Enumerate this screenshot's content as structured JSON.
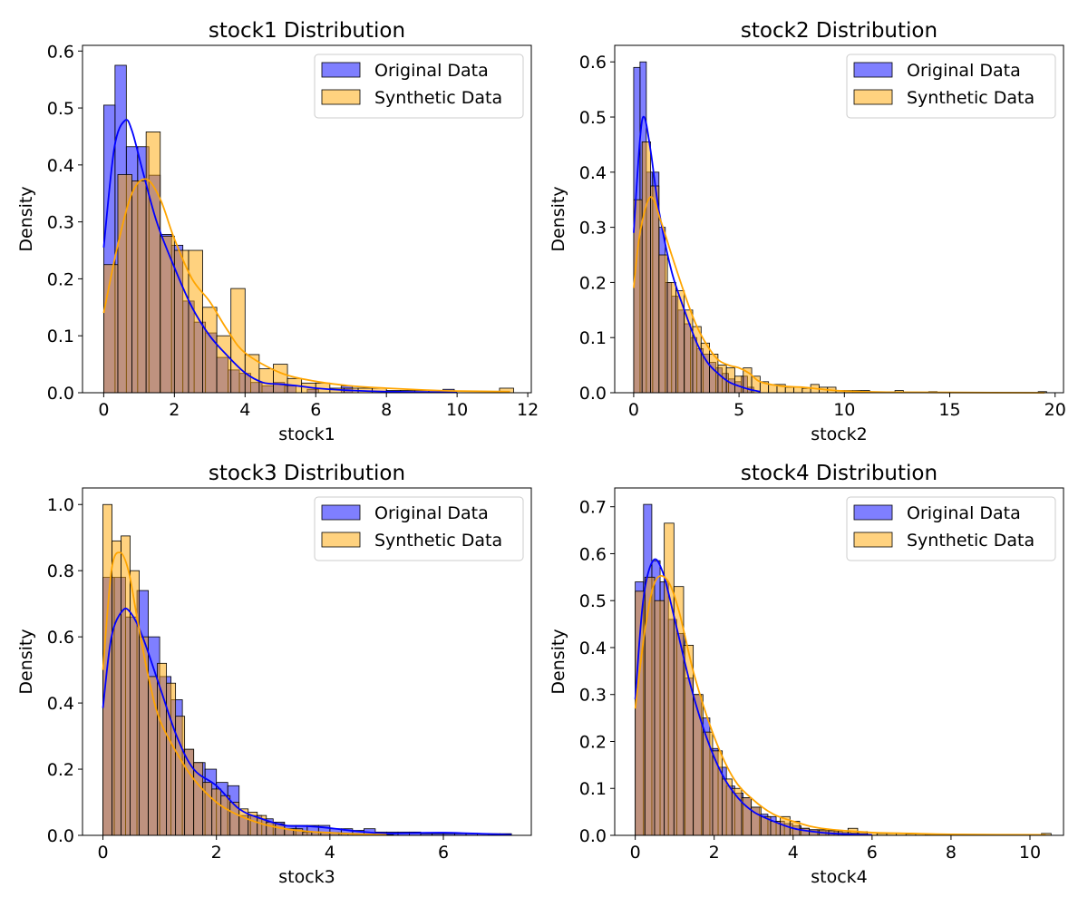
{
  "figure": {
    "colors": {
      "original": "#0000ff",
      "synthetic": "#ffa500",
      "overlap": "#a77d78"
    }
  },
  "chart_data": [
    {
      "type": "histogram",
      "title": "stock1 Distribution",
      "xlabel": "stock1",
      "ylabel": "Density",
      "xlim": [
        -0.6,
        12.1
      ],
      "ylim": [
        0,
        0.61
      ],
      "xticks": [
        0,
        2,
        4,
        6,
        8,
        10,
        12
      ],
      "yticks": [
        0.0,
        0.1,
        0.2,
        0.3,
        0.4,
        0.5,
        0.6
      ],
      "legend": {
        "position": "top-right",
        "entries": [
          "Original Data",
          "Synthetic Data"
        ]
      },
      "series": [
        {
          "name": "Original Data",
          "bin_start": 0.0,
          "bin_width": 0.32,
          "values": [
            0.505,
            0.575,
            0.432,
            0.432,
            0.382,
            0.278,
            0.259,
            0.161,
            0.124,
            0.105,
            0.062,
            0.04,
            0.034,
            0.018,
            0.012,
            0.018,
            0.012,
            0.0,
            0.006,
            0.0,
            0.0,
            0.012,
            0.0,
            0.0,
            0.0,
            0.0,
            0.0,
            0.0,
            0.0,
            0.0,
            0.006
          ]
        },
        {
          "name": "Synthetic Data",
          "bin_start": 0.0,
          "bin_width": 0.4,
          "values": [
            0.225,
            0.383,
            0.372,
            0.458,
            0.275,
            0.25,
            0.25,
            0.15,
            0.1,
            0.183,
            0.067,
            0.042,
            0.05,
            0.025,
            0.017,
            0.017,
            0.008,
            0.008,
            0.008,
            0.008,
            0.004,
            0.004,
            0.004,
            0.004,
            0.0,
            0.0,
            0.0,
            0.0,
            0.008
          ]
        },
        {
          "name": "Original Data",
          "kind": "kde",
          "x": [
            0,
            0.3,
            0.6,
            0.8,
            1.1,
            1.5,
            2.0,
            2.5,
            3.0,
            3.5,
            4.0,
            4.5,
            5.0,
            5.5,
            6.0,
            7.0,
            8.0,
            10.0
          ],
          "y": [
            0.255,
            0.43,
            0.478,
            0.46,
            0.39,
            0.3,
            0.22,
            0.15,
            0.1,
            0.065,
            0.035,
            0.018,
            0.015,
            0.012,
            0.008,
            0.004,
            0.002,
            0.001
          ]
        },
        {
          "name": "Synthetic Data",
          "kind": "kde",
          "x": [
            0,
            0.4,
            0.8,
            1.2,
            1.6,
            2.0,
            2.5,
            3.0,
            3.5,
            4.0,
            5.0,
            6.0,
            7.0,
            8.0,
            9.0,
            10.0,
            11.5
          ],
          "y": [
            0.14,
            0.26,
            0.35,
            0.375,
            0.34,
            0.27,
            0.2,
            0.16,
            0.11,
            0.07,
            0.035,
            0.02,
            0.012,
            0.008,
            0.005,
            0.003,
            0.002
          ]
        }
      ]
    },
    {
      "type": "histogram",
      "title": "stock2 Distribution",
      "xlabel": "stock2",
      "ylabel": "Density",
      "xlim": [
        -0.9,
        20.4
      ],
      "ylim": [
        0,
        0.63
      ],
      "xticks": [
        0,
        5,
        10,
        15,
        20
      ],
      "yticks": [
        0.0,
        0.1,
        0.2,
        0.3,
        0.4,
        0.5,
        0.6
      ],
      "legend": {
        "position": "top-right",
        "entries": [
          "Original Data",
          "Synthetic Data"
        ]
      },
      "series": [
        {
          "name": "Original Data",
          "bin_start": 0.0,
          "bin_width": 0.3,
          "values": [
            0.59,
            0.6,
            0.4,
            0.4,
            0.3,
            0.2,
            0.175,
            0.15,
            0.125,
            0.1,
            0.08,
            0.07,
            0.055,
            0.045,
            0.035,
            0.025,
            0.02,
            0.03,
            0.01
          ]
        },
        {
          "name": "Synthetic Data",
          "bin_start": 0.0,
          "bin_width": 0.4,
          "values": [
            0.35,
            0.455,
            0.375,
            0.25,
            0.2,
            0.185,
            0.15,
            0.12,
            0.09,
            0.07,
            0.05,
            0.045,
            0.03,
            0.045,
            0.03,
            0.02,
            0.015,
            0.015,
            0.01,
            0.01,
            0.008,
            0.015,
            0.01,
            0.01,
            0.004,
            0.004,
            0.004,
            0.004,
            0.0,
            0.0,
            0.0,
            0.004,
            0.0,
            0.0,
            0.0,
            0.002,
            0.0,
            0.0,
            0.0,
            0.0,
            0.0,
            0.0,
            0.0,
            0.0,
            0.0,
            0.0,
            0.0,
            0.0,
            0.002
          ]
        },
        {
          "name": "Original Data",
          "kind": "kde",
          "x": [
            0,
            0.3,
            0.5,
            0.8,
            1.2,
            1.8,
            2.5,
            3.0,
            3.5,
            4.0,
            4.5,
            5.0,
            5.5,
            6.0
          ],
          "y": [
            0.29,
            0.46,
            0.5,
            0.44,
            0.33,
            0.22,
            0.14,
            0.09,
            0.055,
            0.035,
            0.02,
            0.012,
            0.006,
            0.002
          ]
        },
        {
          "name": "Synthetic Data",
          "kind": "kde",
          "x": [
            0,
            0.3,
            0.8,
            1.3,
            1.8,
            2.5,
            3.0,
            3.5,
            4.0,
            4.5,
            5.0,
            5.5,
            6.0,
            7.0,
            8.0,
            9.0,
            10.0,
            12.0,
            15.0,
            19.5
          ],
          "y": [
            0.19,
            0.29,
            0.355,
            0.31,
            0.25,
            0.17,
            0.12,
            0.085,
            0.06,
            0.05,
            0.045,
            0.035,
            0.02,
            0.012,
            0.01,
            0.006,
            0.003,
            0.001,
            0.0005,
            0.0
          ]
        }
      ]
    },
    {
      "type": "histogram",
      "title": "stock3 Distribution",
      "xlabel": "stock3",
      "ylabel": "Density",
      "xlim": [
        -0.36,
        7.55
      ],
      "ylim": [
        0,
        1.05
      ],
      "xticks": [
        0,
        2,
        4,
        6
      ],
      "yticks": [
        0.0,
        0.2,
        0.4,
        0.6,
        0.8,
        1.0
      ],
      "legend": {
        "position": "top-right",
        "entries": [
          "Original Data",
          "Synthetic Data"
        ]
      },
      "series": [
        {
          "name": "Original Data",
          "bin_start": 0.0,
          "bin_width": 0.2,
          "values": [
            0.78,
            0.78,
            0.66,
            0.74,
            0.6,
            0.48,
            0.41,
            0.26,
            0.22,
            0.2,
            0.16,
            0.15,
            0.06,
            0.06,
            0.05,
            0.04,
            0.03,
            0.03,
            0.03,
            0.03,
            0.02,
            0.02,
            0.015,
            0.02,
            0.01,
            0.01,
            0.01,
            0.01,
            0.005,
            0.005,
            0.005,
            0.005,
            0.005,
            0.005,
            0.005,
            0.005
          ]
        },
        {
          "name": "Synthetic Data",
          "bin_start": 0.0,
          "bin_width": 0.16,
          "values": [
            1.0,
            0.89,
            0.905,
            0.8,
            0.6,
            0.48,
            0.52,
            0.46,
            0.36,
            0.26,
            0.22,
            0.16,
            0.14,
            0.12,
            0.1,
            0.08,
            0.07,
            0.06,
            0.04,
            0.035,
            0.02,
            0.02,
            0.01,
            0.01,
            0.008,
            0.008,
            0.005,
            0.005,
            0.004,
            0.004,
            0.003,
            0.002
          ]
        },
        {
          "name": "Original Data",
          "kind": "kde",
          "x": [
            0,
            0.15,
            0.35,
            0.5,
            0.7,
            1.0,
            1.3,
            1.6,
            2.0,
            2.4,
            2.8,
            3.2,
            3.6,
            4.0,
            4.5,
            5.0,
            6.0,
            7.2
          ],
          "y": [
            0.385,
            0.6,
            0.68,
            0.67,
            0.6,
            0.45,
            0.3,
            0.2,
            0.15,
            0.08,
            0.05,
            0.03,
            0.028,
            0.022,
            0.012,
            0.006,
            0.008,
            0.002
          ]
        },
        {
          "name": "Synthetic Data",
          "kind": "kde",
          "x": [
            0,
            0.15,
            0.3,
            0.45,
            0.6,
            0.8,
            1.0,
            1.3,
            1.6,
            2.0,
            2.4,
            2.8,
            3.2,
            3.6,
            4.0,
            4.5,
            5.0
          ],
          "y": [
            0.5,
            0.8,
            0.855,
            0.8,
            0.66,
            0.48,
            0.35,
            0.25,
            0.17,
            0.1,
            0.06,
            0.035,
            0.02,
            0.012,
            0.008,
            0.004,
            0.002
          ]
        }
      ]
    },
    {
      "type": "histogram",
      "title": "stock4 Distribution",
      "xlabel": "stock4",
      "ylabel": "Density",
      "xlim": [
        -0.52,
        10.85
      ],
      "ylim": [
        0,
        0.74
      ],
      "xticks": [
        0,
        2,
        4,
        6,
        8,
        10
      ],
      "yticks": [
        0.0,
        0.1,
        0.2,
        0.3,
        0.4,
        0.5,
        0.6,
        0.7
      ],
      "legend": {
        "position": "top-right",
        "entries": [
          "Original Data",
          "Synthetic Data"
        ]
      },
      "series": [
        {
          "name": "Original Data",
          "bin_start": 0.0,
          "bin_width": 0.21,
          "values": [
            0.54,
            0.705,
            0.585,
            0.54,
            0.46,
            0.43,
            0.335,
            0.3,
            0.25,
            0.185,
            0.145,
            0.105,
            0.09,
            0.08,
            0.06,
            0.045,
            0.04,
            0.03,
            0.025,
            0.02,
            0.015,
            0.012,
            0.01,
            0.01,
            0.008,
            0.006,
            0.005,
            0.004
          ]
        },
        {
          "name": "Synthetic Data",
          "bin_start": 0.0,
          "bin_width": 0.245,
          "values": [
            0.52,
            0.55,
            0.5,
            0.665,
            0.53,
            0.405,
            0.3,
            0.22,
            0.18,
            0.12,
            0.1,
            0.08,
            0.06,
            0.04,
            0.03,
            0.04,
            0.03,
            0.015,
            0.012,
            0.012,
            0.01,
            0.01,
            0.015,
            0.008,
            0.006,
            0.004,
            0.004,
            0.004,
            0.003,
            0.003,
            0.002,
            0.002,
            0.002,
            0.002,
            0.002,
            0.002,
            0.002,
            0.002,
            0.0,
            0.0,
            0.0,
            0.0,
            0.004
          ]
        },
        {
          "name": "Original Data",
          "kind": "kde",
          "x": [
            0,
            0.2,
            0.45,
            0.7,
            1.0,
            1.4,
            1.8,
            2.2,
            2.6,
            3.0,
            3.5,
            4.0,
            4.5,
            5.0,
            5.5,
            6.0
          ],
          "y": [
            0.29,
            0.5,
            0.585,
            0.56,
            0.46,
            0.32,
            0.21,
            0.13,
            0.08,
            0.05,
            0.03,
            0.015,
            0.008,
            0.004,
            0.002,
            0.001
          ]
        },
        {
          "name": "Synthetic Data",
          "kind": "kde",
          "x": [
            0,
            0.25,
            0.5,
            0.8,
            1.1,
            1.5,
            2.0,
            2.5,
            3.0,
            3.5,
            4.0,
            4.5,
            5.0,
            6.0,
            7.0,
            8.0,
            10.4
          ],
          "y": [
            0.27,
            0.44,
            0.54,
            0.545,
            0.48,
            0.34,
            0.21,
            0.12,
            0.075,
            0.045,
            0.03,
            0.018,
            0.012,
            0.006,
            0.004,
            0.002,
            0.001
          ]
        }
      ]
    }
  ]
}
